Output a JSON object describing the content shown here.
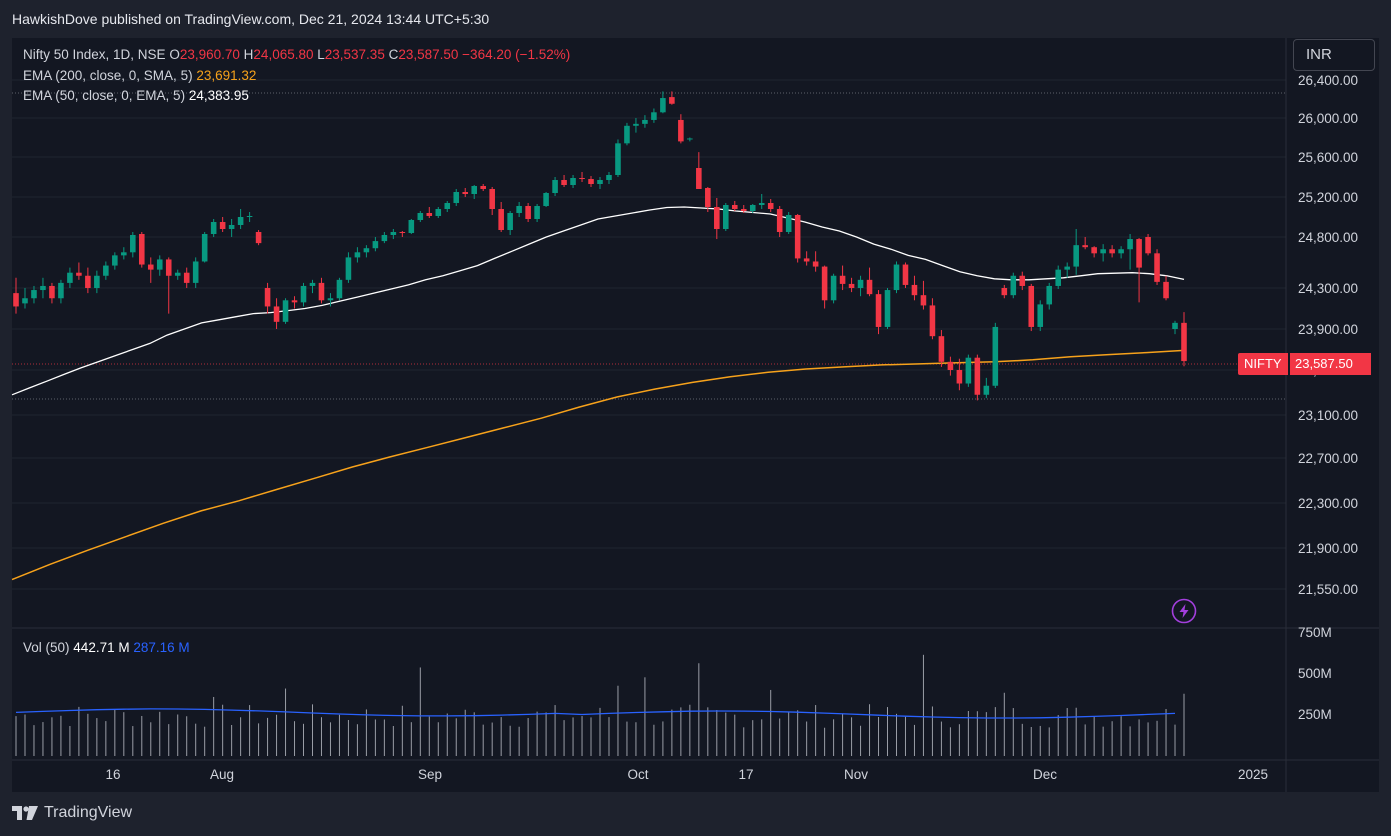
{
  "header": {
    "published_line": "HawkishDove published on TradingView.com, Dec 21, 2024 13:44 UTC+5:30"
  },
  "legend": {
    "symbol": "Nifty 50 Index, 1D, NSE",
    "open_label": "O",
    "open": "23,960.70",
    "high_label": "H",
    "high": "24,065.80",
    "low_label": "L",
    "low": "23,537.35",
    "close_label": "C",
    "close": "23,587.50",
    "change": "−364.20 (−1.52%)",
    "ema200_label": "EMA (200, close, 0, SMA, 5)",
    "ema200_value": "23,691.32",
    "ema50_label": "EMA (50, close, 0, EMA, 5)",
    "ema50_value": "24,383.95"
  },
  "volume_legend": {
    "label": "Vol (50)",
    "value": "442.71 M",
    "ma_value": "287.16 M"
  },
  "currency": "INR",
  "last_price_tag": {
    "symbol": "NIFTY",
    "price": "23,587.50"
  },
  "footer": {
    "brand": "TradingView"
  },
  "icons": {
    "logo": "tradingview-logo-icon",
    "alert": "lightning-bolt-icon"
  },
  "colors": {
    "up": "#089981",
    "down": "#f23645",
    "ema200": "#f7a21b",
    "ema50": "#ffffff",
    "volume_ma": "#2962ff",
    "background": "#131722"
  },
  "chart_data": {
    "type": "candlestick",
    "price_axis_ticks": [
      26400,
      26000,
      25600,
      25200,
      24800,
      24300,
      23900,
      23500,
      23100,
      22700,
      22300,
      21900,
      21550
    ],
    "price_axis_labels": [
      "26,400.00",
      "26,000.00",
      "25,600.00",
      "25,200.00",
      "24,800.00",
      "24,300.00",
      "23,900.00",
      "23,500.00",
      "23,100.00",
      "22,700.00",
      "22,300.00",
      "21,900.00",
      "21,550.00"
    ],
    "volume_axis_labels": [
      "750M",
      "500M",
      "250M"
    ],
    "volume_axis_ticks": [
      750,
      500,
      250
    ],
    "time_axis_labels": [
      "16",
      "Aug",
      "Sep",
      "Oct",
      "17",
      "Nov",
      "Dec",
      "2025"
    ],
    "candles": [
      [
        24250,
        24400,
        24050,
        24120
      ],
      [
        24150,
        24300,
        24100,
        24200
      ],
      [
        24200,
        24320,
        24150,
        24280
      ],
      [
        24280,
        24400,
        24200,
        24320
      ],
      [
        24320,
        24350,
        24150,
        24200
      ],
      [
        24200,
        24380,
        24150,
        24350
      ],
      [
        24350,
        24500,
        24300,
        24450
      ],
      [
        24450,
        24550,
        24380,
        24420
      ],
      [
        24420,
        24500,
        24250,
        24300
      ],
      [
        24300,
        24470,
        24250,
        24420
      ],
      [
        24420,
        24560,
        24380,
        24520
      ],
      [
        24520,
        24650,
        24480,
        24620
      ],
      [
        24620,
        24700,
        24580,
        24650
      ],
      [
        24650,
        24850,
        24600,
        24820
      ],
      [
        24830,
        24850,
        24500,
        24530
      ],
      [
        24530,
        24600,
        24350,
        24480
      ],
      [
        24480,
        24620,
        24420,
        24580
      ],
      [
        24580,
        24600,
        24050,
        24420
      ],
      [
        24420,
        24480,
        24380,
        24450
      ],
      [
        24450,
        24500,
        24300,
        24350
      ],
      [
        24350,
        24600,
        24300,
        24560
      ],
      [
        24560,
        24850,
        24550,
        24830
      ],
      [
        24830,
        24980,
        24800,
        24950
      ],
      [
        24950,
        25000,
        24850,
        24880
      ],
      [
        24880,
        24980,
        24800,
        24920
      ],
      [
        24920,
        25080,
        24880,
        25000
      ],
      [
        25000,
        25050,
        24950,
        25010
      ],
      [
        24850,
        24870,
        24720,
        24740
      ],
      [
        24300,
        24350,
        24050,
        24120
      ],
      [
        24120,
        24200,
        23900,
        23970
      ],
      [
        23970,
        24200,
        23950,
        24180
      ],
      [
        24180,
        24220,
        24100,
        24160
      ],
      [
        24160,
        24350,
        24120,
        24320
      ],
      [
        24320,
        24380,
        24250,
        24350
      ],
      [
        24350,
        24400,
        24150,
        24180
      ],
      [
        24180,
        24250,
        24120,
        24200
      ],
      [
        24200,
        24400,
        24180,
        24380
      ],
      [
        24380,
        24650,
        24350,
        24600
      ],
      [
        24600,
        24700,
        24550,
        24650
      ],
      [
        24650,
        24720,
        24600,
        24690
      ],
      [
        24690,
        24800,
        24660,
        24760
      ],
      [
        24760,
        24850,
        24740,
        24820
      ],
      [
        24820,
        24880,
        24780,
        24850
      ],
      [
        24850,
        24860,
        24800,
        24840
      ],
      [
        24840,
        24980,
        24830,
        24970
      ],
      [
        24970,
        25060,
        24950,
        25040
      ],
      [
        25040,
        25100,
        24990,
        25010
      ],
      [
        25010,
        25100,
        24990,
        25080
      ],
      [
        25080,
        25160,
        25050,
        25140
      ],
      [
        25140,
        25280,
        25110,
        25250
      ],
      [
        25250,
        25290,
        25200,
        25230
      ],
      [
        25230,
        25320,
        25180,
        25310
      ],
      [
        25310,
        25330,
        25260,
        25280
      ],
      [
        25280,
        25300,
        25020,
        25080
      ],
      [
        25080,
        25150,
        24850,
        24870
      ],
      [
        24870,
        25060,
        24820,
        25040
      ],
      [
        25040,
        25150,
        25000,
        25110
      ],
      [
        25110,
        25140,
        24950,
        24980
      ],
      [
        24980,
        25130,
        24950,
        25110
      ],
      [
        25110,
        25250,
        25100,
        25240
      ],
      [
        25240,
        25400,
        25210,
        25370
      ],
      [
        25370,
        25420,
        25300,
        25320
      ],
      [
        25320,
        25420,
        25290,
        25390
      ],
      [
        25390,
        25450,
        25350,
        25380
      ],
      [
        25380,
        25410,
        25300,
        25330
      ],
      [
        25330,
        25400,
        25280,
        25370
      ],
      [
        25370,
        25450,
        25330,
        25420
      ],
      [
        25420,
        25780,
        25400,
        25740
      ],
      [
        25740,
        25950,
        25720,
        25920
      ],
      [
        25920,
        26000,
        25850,
        25940
      ],
      [
        25940,
        26030,
        25900,
        25980
      ],
      [
        25980,
        26100,
        25950,
        26060
      ],
      [
        26060,
        26280,
        26050,
        26210
      ],
      [
        26220,
        26280,
        26140,
        26150
      ],
      [
        25980,
        26040,
        25740,
        25760
      ],
      [
        25780,
        25800,
        25760,
        25790
      ],
      [
        25490,
        25650,
        25280,
        25280
      ],
      [
        25290,
        25300,
        25050,
        25100
      ],
      [
        25100,
        25190,
        24780,
        24880
      ],
      [
        24880,
        25140,
        24860,
        25120
      ],
      [
        25120,
        25160,
        25060,
        25080
      ],
      [
        25080,
        25120,
        25040,
        25060
      ],
      [
        25060,
        25130,
        25040,
        25120
      ],
      [
        25120,
        25230,
        25080,
        25140
      ],
      [
        25140,
        25180,
        25050,
        25080
      ],
      [
        25080,
        25110,
        24800,
        24850
      ],
      [
        24850,
        25050,
        24830,
        25020
      ],
      [
        25020,
        25030,
        24550,
        24590
      ],
      [
        24590,
        24660,
        24520,
        24560
      ],
      [
        24560,
        24660,
        24460,
        24510
      ],
      [
        24510,
        24520,
        24100,
        24180
      ],
      [
        24180,
        24440,
        24150,
        24420
      ],
      [
        24420,
        24520,
        24280,
        24340
      ],
      [
        24340,
        24400,
        24260,
        24300
      ],
      [
        24300,
        24420,
        24220,
        24380
      ],
      [
        24380,
        24500,
        24220,
        24240
      ],
      [
        24240,
        24280,
        23850,
        23920
      ],
      [
        23920,
        24300,
        23900,
        24280
      ],
      [
        24280,
        24560,
        24250,
        24530
      ],
      [
        24530,
        24550,
        24300,
        24330
      ],
      [
        24330,
        24420,
        24180,
        24230
      ],
      [
        24230,
        24370,
        24090,
        24130
      ],
      [
        24130,
        24200,
        23800,
        23830
      ],
      [
        23830,
        23890,
        23530,
        23580
      ],
      [
        23580,
        23630,
        23450,
        23500
      ],
      [
        23500,
        23610,
        23320,
        23380
      ],
      [
        23380,
        23650,
        23350,
        23620
      ],
      [
        23620,
        23650,
        23230,
        23280
      ],
      [
        23280,
        23430,
        23250,
        23360
      ],
      [
        23360,
        23960,
        23340,
        23920
      ],
      [
        24300,
        24330,
        24200,
        24230
      ],
      [
        24230,
        24450,
        24200,
        24420
      ],
      [
        24420,
        24460,
        24280,
        24320
      ],
      [
        24320,
        24340,
        23880,
        23920
      ],
      [
        23920,
        24180,
        23880,
        24140
      ],
      [
        24140,
        24350,
        24090,
        24320
      ],
      [
        24320,
        24520,
        24290,
        24480
      ],
      [
        24480,
        24550,
        24400,
        24510
      ],
      [
        24510,
        24880,
        24430,
        24720
      ],
      [
        24720,
        24800,
        24680,
        24700
      ],
      [
        24700,
        24710,
        24600,
        24640
      ],
      [
        24640,
        24730,
        24560,
        24680
      ],
      [
        24680,
        24720,
        24600,
        24640
      ],
      [
        24640,
        24710,
        24590,
        24680
      ],
      [
        24680,
        24830,
        24480,
        24780
      ],
      [
        24780,
        24790,
        24160,
        24500
      ],
      [
        24800,
        24830,
        24620,
        24640
      ],
      [
        24640,
        24680,
        24330,
        24360
      ],
      [
        24360,
        24420,
        24180,
        24200
      ],
      [
        23900,
        23980,
        23850,
        23960
      ],
      [
        23960,
        24065,
        23537,
        23587
      ]
    ],
    "ema50": [
      23280,
      23340,
      23400,
      23460,
      23520,
      23580,
      23640,
      23700,
      23760,
      23840,
      23900,
      23960,
      23990,
      24020,
      24050,
      24060,
      24080,
      24100,
      24130,
      24170,
      24210,
      24250,
      24290,
      24330,
      24380,
      24420,
      24470,
      24520,
      24590,
      24660,
      24730,
      24800,
      24860,
      24920,
      24980,
      25010,
      25040,
      25070,
      25095,
      25100,
      25090,
      25080,
      25060,
      25045,
      25030,
      24990,
      24950,
      24900,
      24860,
      24800,
      24730,
      24680,
      24620,
      24580,
      24520,
      24460,
      24420,
      24390,
      24380,
      24380,
      24390,
      24400,
      24420,
      24440,
      24445,
      24450,
      24440,
      24420,
      24384
    ],
    "ema200": [
      21630,
      21760,
      21880,
      22000,
      22120,
      22230,
      22320,
      22420,
      22520,
      22620,
      22710,
      22800,
      22890,
      22980,
      23070,
      23170,
      23260,
      23330,
      23390,
      23440,
      23480,
      23510,
      23530,
      23550,
      23560,
      23570,
      23580,
      23600,
      23630,
      23650,
      23670,
      23691
    ]
  }
}
